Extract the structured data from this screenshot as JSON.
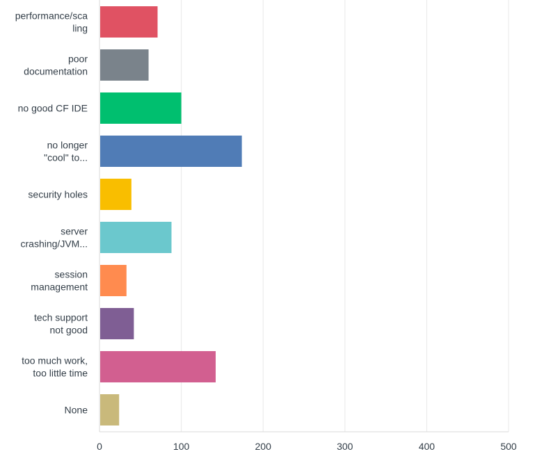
{
  "chart_data": {
    "type": "bar",
    "orientation": "horizontal",
    "categories": [
      "performance/sca\nling",
      "poor\ndocumentation",
      "no good CF IDE",
      "no longer\n\"cool\" to...",
      "security holes",
      "server\ncrashing/JVM...",
      "session\nmanagement",
      "tech support\nnot good",
      "too much work,\ntoo little time",
      "None"
    ],
    "values": [
      71,
      60,
      100,
      174,
      39,
      88,
      33,
      42,
      142,
      24
    ],
    "colors": [
      "#e05263",
      "#7a838b",
      "#00bf6f",
      "#507cb6",
      "#f9be00",
      "#6bc8cd",
      "#ff8b4f",
      "#7f5e94",
      "#d25f90",
      "#c9b97b"
    ],
    "xlim": [
      0,
      500
    ],
    "xticks": [
      0,
      100,
      200,
      300,
      400,
      500
    ],
    "grid": true,
    "title": "",
    "xlabel": "",
    "ylabel": ""
  }
}
